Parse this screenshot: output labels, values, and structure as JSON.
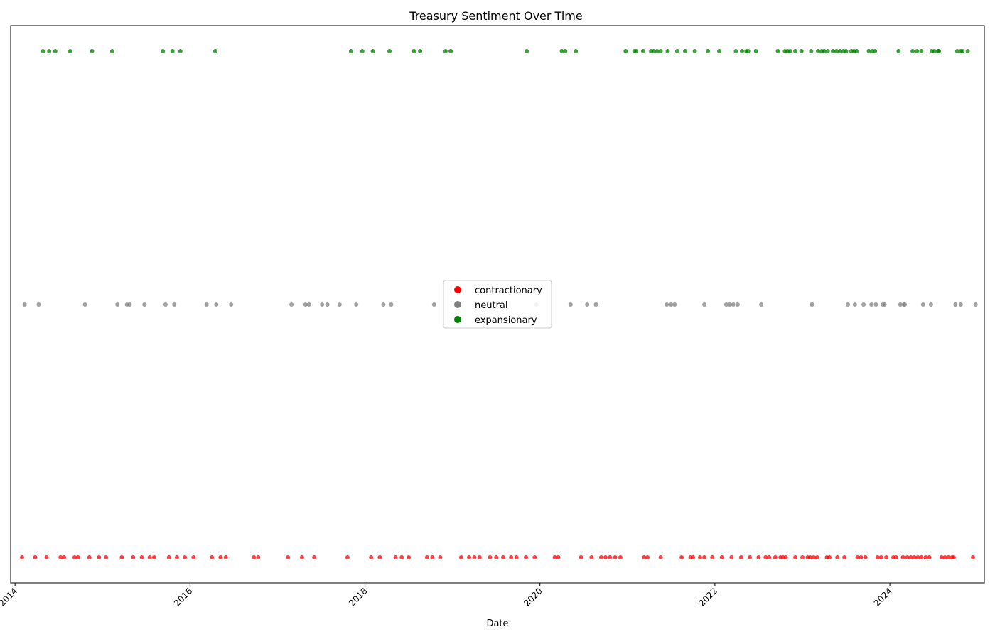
{
  "chart_data": {
    "type": "scatter",
    "title": "Treasury Sentiment Over Time",
    "xlabel": "Date",
    "ylabel": "",
    "x_ticks": [
      "2014",
      "2016",
      "2018",
      "2020",
      "2022",
      "2024"
    ],
    "xlim": [
      2013.95,
      2025.08
    ],
    "categories": [
      "contractionary",
      "neutral",
      "expansionary"
    ],
    "legend": {
      "position": "center"
    },
    "grid": false,
    "series": [
      {
        "name": "contractionary",
        "color": "#ff0000",
        "y": "contractionary",
        "x": [
          2014.08,
          2014.23,
          2014.36,
          2014.52,
          2014.56,
          2014.68,
          2014.72,
          2014.85,
          2014.96,
          2015.04,
          2015.22,
          2015.35,
          2015.45,
          2015.54,
          2015.59,
          2015.76,
          2015.85,
          2015.94,
          2016.04,
          2016.25,
          2016.35,
          2016.41,
          2016.73,
          2016.78,
          2017.12,
          2017.28,
          2017.42,
          2017.8,
          2018.07,
          2018.17,
          2018.35,
          2018.42,
          2018.5,
          2018.71,
          2018.77,
          2018.86,
          2019.1,
          2019.19,
          2019.25,
          2019.31,
          2019.43,
          2019.5,
          2019.58,
          2019.67,
          2019.73,
          2019.84,
          2019.94,
          2020.17,
          2020.21,
          2020.47,
          2020.59,
          2020.7,
          2020.75,
          2020.8,
          2020.86,
          2020.92,
          2021.19,
          2021.23,
          2021.38,
          2021.62,
          2021.72,
          2021.75,
          2021.83,
          2021.88,
          2021.97,
          2022.08,
          2022.19,
          2022.3,
          2022.4,
          2022.5,
          2022.58,
          2022.62,
          2022.69,
          2022.75,
          2022.78,
          2022.81,
          2022.92,
          2023.0,
          2023.06,
          2023.09,
          2023.13,
          2023.17,
          2023.28,
          2023.31,
          2023.4,
          2023.48,
          2023.63,
          2023.67,
          2023.72,
          2023.86,
          2023.9,
          2023.96,
          2024.04,
          2024.07,
          2024.15,
          2024.2,
          2024.24,
          2024.28,
          2024.32,
          2024.36,
          2024.41,
          2024.45,
          2024.59,
          2024.63,
          2024.67,
          2024.71,
          2024.73,
          2024.95
        ]
      },
      {
        "name": "neutral",
        "color": "#808080",
        "y": "neutral",
        "x": [
          2014.11,
          2014.27,
          2014.8,
          2015.17,
          2015.28,
          2015.31,
          2015.48,
          2015.72,
          2015.82,
          2016.19,
          2016.3,
          2016.47,
          2017.16,
          2017.32,
          2017.36,
          2017.51,
          2017.57,
          2017.71,
          2017.9,
          2018.21,
          2018.3,
          2018.79,
          2019.96,
          2020.35,
          2020.54,
          2020.64,
          2021.45,
          2021.5,
          2021.54,
          2021.88,
          2022.13,
          2022.17,
          2022.21,
          2022.26,
          2022.53,
          2023.11,
          2023.52,
          2023.6,
          2023.7,
          2023.79,
          2023.84,
          2023.92,
          2023.94,
          2024.12,
          2024.16,
          2024.17,
          2024.38,
          2024.47,
          2024.75,
          2024.81,
          2024.98
        ]
      },
      {
        "name": "expansionary",
        "color": "#008000",
        "y": "expansionary",
        "x": [
          2014.32,
          2014.39,
          2014.46,
          2014.63,
          2014.88,
          2015.11,
          2015.69,
          2015.8,
          2015.89,
          2016.29,
          2017.84,
          2017.97,
          2018.09,
          2018.28,
          2018.56,
          2018.63,
          2018.92,
          2018.98,
          2019.85,
          2020.25,
          2020.29,
          2020.41,
          2020.98,
          2021.08,
          2021.1,
          2021.18,
          2021.27,
          2021.3,
          2021.34,
          2021.38,
          2021.46,
          2021.57,
          2021.66,
          2021.77,
          2021.92,
          2022.05,
          2022.24,
          2022.31,
          2022.36,
          2022.38,
          2022.47,
          2022.72,
          2022.8,
          2022.83,
          2022.86,
          2022.92,
          2022.99,
          2023.1,
          2023.18,
          2023.22,
          2023.25,
          2023.29,
          2023.35,
          2023.39,
          2023.43,
          2023.47,
          2023.5,
          2023.56,
          2023.59,
          2023.62,
          2023.76,
          2023.8,
          2023.83,
          2024.1,
          2024.26,
          2024.31,
          2024.36,
          2024.48,
          2024.51,
          2024.55,
          2024.56,
          2024.77,
          2024.81,
          2024.83,
          2024.89
        ]
      }
    ]
  }
}
